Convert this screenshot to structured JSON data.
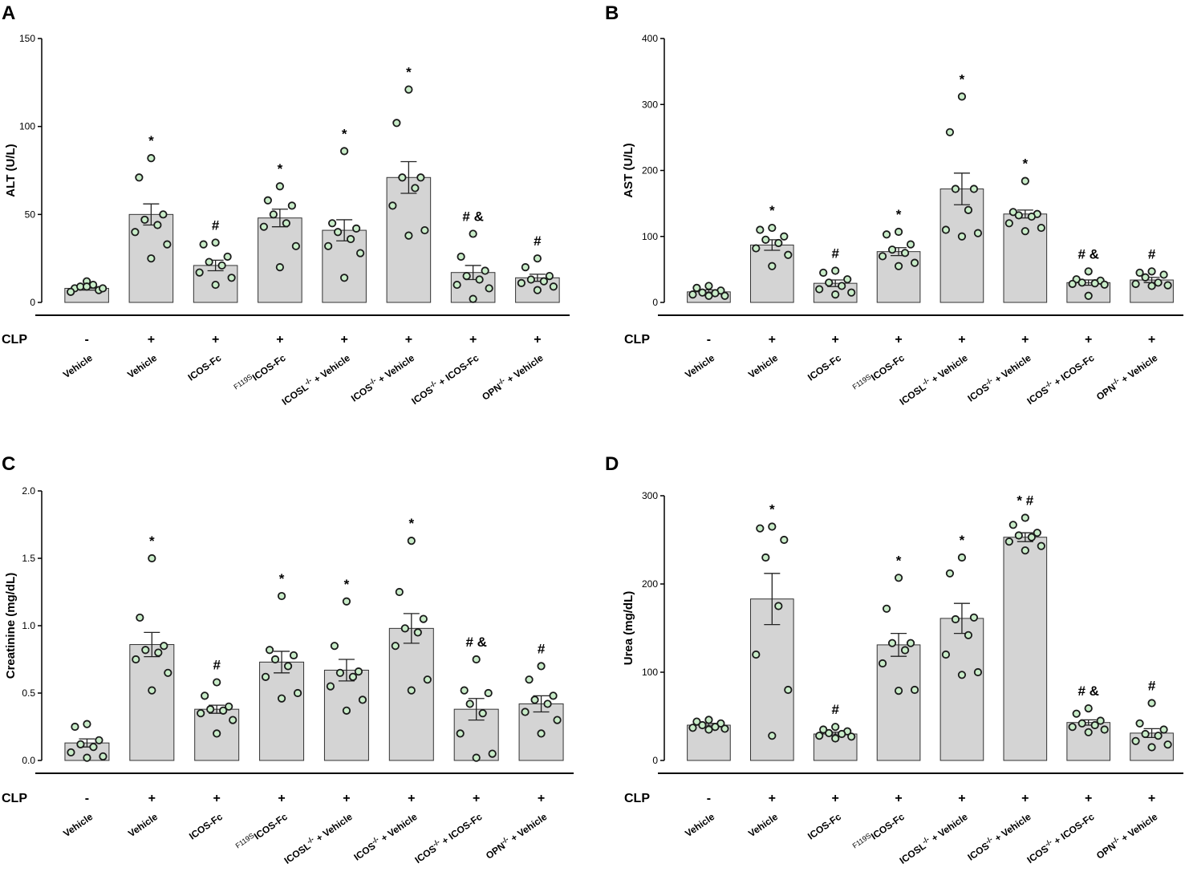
{
  "figure": {
    "clp_label": "CLP",
    "colors": {
      "bar_fill": "#d4d4d4",
      "bar_stroke": "#333333",
      "point_fill": "#c8ecc8",
      "point_stroke": "#1a1a1a",
      "axis": "#000000"
    }
  },
  "chart_data": [
    {
      "panel": "A",
      "type": "bar",
      "ylabel": "ALT (U/L)",
      "ylim": [
        0,
        150
      ],
      "yticks": [
        "0",
        "50",
        "100",
        "150"
      ],
      "categories": [
        "Vehicle",
        "Vehicle",
        "ICOS-Fc",
        "F119SICOS-Fc",
        "ICOSL-/- + Vehicle",
        "ICOS-/- + Vehicle",
        "ICOS-/- + ICOS-Fc",
        "OPN-/- + Vehicle"
      ],
      "clp": [
        "-",
        "+",
        "+",
        "+",
        "+",
        "+",
        "+",
        "+"
      ],
      "means": [
        8,
        50,
        21,
        48,
        41,
        71,
        17,
        14
      ],
      "sem": [
        1,
        6,
        3,
        5,
        6,
        9,
        4,
        2
      ],
      "significance": [
        "",
        "*",
        "#",
        "*",
        "*",
        "*",
        "# &",
        "#"
      ],
      "points": [
        [
          12,
          8,
          7,
          9,
          10,
          6,
          8,
          9
        ],
        [
          82,
          71,
          50,
          47,
          44,
          40,
          33,
          25
        ],
        [
          34,
          33,
          26,
          23,
          21,
          17,
          14,
          10
        ],
        [
          66,
          58,
          55,
          50,
          45,
          43,
          32,
          20
        ],
        [
          86,
          45,
          42,
          40,
          36,
          32,
          28,
          14
        ],
        [
          121,
          102,
          71,
          71,
          65,
          55,
          41,
          38
        ],
        [
          39,
          26,
          18,
          15,
          13,
          10,
          8,
          2
        ],
        [
          25,
          20,
          15,
          13,
          12,
          11,
          9,
          7
        ]
      ]
    },
    {
      "panel": "B",
      "type": "bar",
      "ylabel": "AST (U/L)",
      "ylim": [
        0,
        400
      ],
      "yticks": [
        "0",
        "100",
        "200",
        "300",
        "400"
      ],
      "categories": [
        "Vehicle",
        "Vehicle",
        "ICOS-Fc",
        "F119SICOS-Fc",
        "ICOSL-/- + Vehicle",
        "ICOS-/- + Vehicle",
        "ICOS-/- + ICOS-Fc",
        "OPN-/- + Vehicle"
      ],
      "clp": [
        "-",
        "+",
        "+",
        "+",
        "+",
        "+",
        "+",
        "+"
      ],
      "means": [
        16,
        87,
        29,
        77,
        172,
        134,
        30,
        34
      ],
      "sem": [
        3,
        8,
        5,
        6,
        24,
        6,
        4,
        4
      ],
      "significance": [
        "",
        "*",
        "#",
        "*",
        "*",
        "*",
        "# &",
        "#"
      ],
      "points": [
        [
          25,
          22,
          18,
          15,
          14,
          12,
          10,
          10
        ],
        [
          113,
          110,
          100,
          95,
          90,
          82,
          72,
          55
        ],
        [
          48,
          45,
          35,
          30,
          25,
          20,
          15,
          12
        ],
        [
          107,
          103,
          88,
          80,
          75,
          70,
          60,
          55
        ],
        [
          312,
          258,
          172,
          172,
          140,
          110,
          105,
          100
        ],
        [
          184,
          137,
          134,
          132,
          130,
          120,
          113,
          108
        ],
        [
          47,
          35,
          33,
          30,
          29,
          28,
          27,
          10
        ],
        [
          47,
          45,
          42,
          38,
          30,
          28,
          26,
          25
        ]
      ]
    },
    {
      "panel": "C",
      "type": "bar",
      "ylabel": "Creatinine (mg/dL)",
      "ylim": [
        0,
        2.0
      ],
      "yticks": [
        "0.0",
        "0.5",
        "1.0",
        "1.5",
        "2.0"
      ],
      "categories": [
        "Vehicle",
        "Vehicle",
        "ICOS-Fc",
        "F119SICOS-Fc",
        "ICOSL-/- + Vehicle",
        "ICOS-/- + Vehicle",
        "ICOS-/- + ICOS-Fc",
        "OPN-/- + Vehicle"
      ],
      "clp": [
        "-",
        "+",
        "+",
        "+",
        "+",
        "+",
        "+",
        "+"
      ],
      "means": [
        0.13,
        0.86,
        0.38,
        0.73,
        0.67,
        0.98,
        0.38,
        0.42
      ],
      "sem": [
        0.03,
        0.09,
        0.03,
        0.08,
        0.08,
        0.11,
        0.08,
        0.06
      ],
      "significance": [
        "",
        "*",
        "#",
        "*",
        "*",
        "*",
        "# &",
        "#"
      ],
      "points": [
        [
          0.27,
          0.25,
          0.15,
          0.12,
          0.1,
          0.06,
          0.03,
          0.02
        ],
        [
          1.5,
          1.06,
          0.85,
          0.82,
          0.8,
          0.75,
          0.65,
          0.52
        ],
        [
          0.58,
          0.48,
          0.4,
          0.38,
          0.37,
          0.35,
          0.3,
          0.2
        ],
        [
          1.22,
          0.82,
          0.78,
          0.75,
          0.7,
          0.62,
          0.5,
          0.46
        ],
        [
          1.18,
          0.85,
          0.66,
          0.65,
          0.62,
          0.55,
          0.45,
          0.37
        ],
        [
          1.63,
          1.25,
          1.05,
          0.98,
          0.95,
          0.85,
          0.6,
          0.52
        ],
        [
          0.75,
          0.52,
          0.5,
          0.42,
          0.35,
          0.2,
          0.05,
          0.02
        ],
        [
          0.7,
          0.6,
          0.48,
          0.45,
          0.42,
          0.36,
          0.3,
          0.2
        ]
      ]
    },
    {
      "panel": "D",
      "type": "bar",
      "ylabel": "Urea (mg/dL)",
      "ylim": [
        0,
        300
      ],
      "yticks": [
        "0",
        "100",
        "200",
        "300"
      ],
      "categories": [
        "Vehicle",
        "Vehicle",
        "ICOS-Fc",
        "F119SICOS-Fc",
        "ICOSL-/- + Vehicle",
        "ICOS-/- + Vehicle",
        "ICOS-/- + ICOS-Fc",
        "OPN-/- + Vehicle"
      ],
      "clp": [
        "-",
        "+",
        "+",
        "+",
        "+",
        "+",
        "+",
        "+"
      ],
      "means": [
        40,
        183,
        30,
        131,
        161,
        253,
        43,
        31
      ],
      "sem": [
        2,
        29,
        2,
        13,
        17,
        5,
        3,
        5
      ],
      "significance": [
        "",
        "*",
        "#",
        "*",
        "*",
        "* #",
        "# &",
        "#"
      ],
      "points": [
        [
          46,
          44,
          42,
          40,
          38,
          37,
          36,
          35
        ],
        [
          265,
          263,
          250,
          230,
          175,
          120,
          80,
          28
        ],
        [
          38,
          35,
          33,
          31,
          30,
          28,
          27,
          25
        ],
        [
          207,
          172,
          133,
          133,
          125,
          110,
          80,
          79
        ],
        [
          230,
          212,
          162,
          160,
          142,
          120,
          100,
          97
        ],
        [
          275,
          267,
          258,
          255,
          253,
          248,
          243,
          238
        ],
        [
          59,
          53,
          45,
          42,
          40,
          38,
          35,
          32
        ],
        [
          65,
          42,
          35,
          30,
          28,
          22,
          18,
          15
        ]
      ]
    }
  ]
}
